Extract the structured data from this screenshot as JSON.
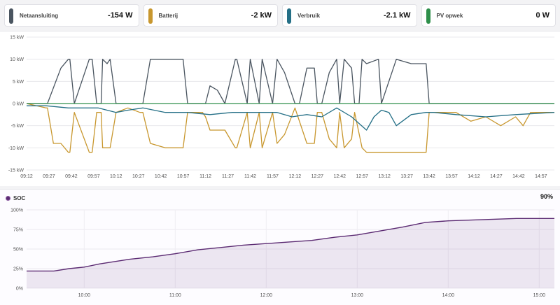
{
  "cards": [
    {
      "label": "Netaansluiting",
      "value": "-154 W",
      "color": "#4a5560"
    },
    {
      "label": "Batterij",
      "value": "-2 kW",
      "color": "#c8972e"
    },
    {
      "label": "Verbruik",
      "value": "-2.1 kW",
      "color": "#246f86"
    },
    {
      "label": "PV opwek",
      "value": "0 W",
      "color": "#2e8f4a"
    }
  ],
  "soc": {
    "label": "SOC",
    "value": "90%",
    "color": "#5b2a72"
  },
  "chart_data": [
    {
      "type": "line",
      "title": "",
      "ylim": [
        -15,
        15
      ],
      "y_unit": "kW",
      "yticks": [
        "15 kW",
        "10 kW",
        "5 kW",
        "0 kW",
        "-5 kW",
        "-10 kW",
        "-15 kW"
      ],
      "xticks": [
        "09:12",
        "09:27",
        "09:42",
        "09:57",
        "10:12",
        "10:27",
        "10:42",
        "10:57",
        "11:12",
        "11:27",
        "11:42",
        "11:57",
        "12:12",
        "12:27",
        "12:42",
        "12:57",
        "13:12",
        "13:27",
        "13:42",
        "13:57",
        "14:12",
        "14:27",
        "14:42",
        "14:57"
      ],
      "grid": true,
      "series": [
        {
          "name": "Netaansluiting",
          "color": "#4a5560",
          "x": [
            "09:12",
            "09:25",
            "09:26",
            "09:35",
            "09:40",
            "09:41",
            "09:44",
            "09:54",
            "09:56",
            "09:59",
            "10:02",
            "10:03",
            "10:06",
            "10:08",
            "10:12",
            "10:20",
            "10:28",
            "10:30",
            "10:35",
            "10:45",
            "10:57",
            "11:00",
            "11:02",
            "11:10",
            "11:12",
            "11:15",
            "11:20",
            "11:25",
            "11:32",
            "11:33",
            "11:40",
            "11:42",
            "11:48",
            "11:50",
            "11:57",
            "12:00",
            "12:05",
            "12:12",
            "12:15",
            "12:20",
            "12:25",
            "12:27",
            "12:30",
            "12:35",
            "12:40",
            "12:42",
            "12:45",
            "12:50",
            "12:52",
            "12:55",
            "12:57",
            "13:00",
            "13:08",
            "13:10",
            "13:20",
            "13:30",
            "13:40",
            "13:42",
            "13:45",
            "14:00",
            "14:20",
            "14:40",
            "15:00",
            "15:06"
          ],
          "y": [
            0,
            0,
            0,
            8,
            10,
            10,
            0,
            10,
            10,
            0,
            0,
            10,
            9,
            10,
            0,
            0,
            0,
            0,
            10,
            10,
            10,
            0,
            0,
            0,
            0,
            4,
            3,
            0,
            10,
            10,
            0,
            10,
            0,
            10,
            0,
            10,
            7,
            0,
            0,
            8,
            8,
            0,
            0,
            7,
            10,
            0,
            10,
            8,
            0,
            0,
            10,
            9,
            10,
            0,
            10,
            9,
            9,
            0,
            0,
            0,
            0,
            0,
            0,
            0
          ]
        },
        {
          "name": "Batterij",
          "color": "#c8972e",
          "x": [
            "09:12",
            "09:25",
            "09:26",
            "09:30",
            "09:35",
            "09:40",
            "09:41",
            "09:44",
            "09:54",
            "09:56",
            "09:59",
            "10:02",
            "10:03",
            "10:08",
            "10:12",
            "10:20",
            "10:28",
            "10:30",
            "10:35",
            "10:45",
            "10:57",
            "11:00",
            "11:10",
            "11:12",
            "11:15",
            "11:25",
            "11:32",
            "11:33",
            "11:40",
            "11:42",
            "11:48",
            "11:50",
            "11:57",
            "12:00",
            "12:05",
            "12:12",
            "12:20",
            "12:25",
            "12:27",
            "12:30",
            "12:35",
            "12:40",
            "12:42",
            "12:45",
            "12:50",
            "12:52",
            "12:57",
            "13:00",
            "13:20",
            "13:40",
            "13:42",
            "13:45",
            "14:00",
            "14:10",
            "14:20",
            "14:30",
            "14:40",
            "14:45",
            "14:50",
            "15:06"
          ],
          "y": [
            0,
            -1,
            -1,
            -9,
            -9,
            -11,
            -11,
            -2,
            -11,
            -11,
            -2,
            -2,
            -10,
            -10,
            -2,
            -1,
            -2,
            -2,
            -9,
            -10,
            -10,
            -2,
            -2,
            -3,
            -6,
            -6,
            -10,
            -10,
            -2,
            -10,
            -2,
            -10,
            -2,
            -9,
            -7,
            -1,
            -9,
            -9,
            -2,
            -2,
            -8,
            -10,
            -2,
            -10,
            -8,
            -2,
            -10,
            -11,
            -11,
            -11,
            -2,
            -2,
            -2,
            -4,
            -3,
            -5,
            -3,
            -5,
            -2,
            -2
          ]
        },
        {
          "name": "Verbruik",
          "color": "#246f86",
          "x": [
            "09:12",
            "09:25",
            "09:40",
            "10:00",
            "10:12",
            "10:20",
            "10:30",
            "10:45",
            "11:00",
            "11:15",
            "11:30",
            "11:45",
            "12:00",
            "12:10",
            "12:20",
            "12:30",
            "12:40",
            "12:50",
            "13:00",
            "13:05",
            "13:10",
            "13:15",
            "13:20",
            "13:30",
            "13:40",
            "13:45",
            "14:00",
            "14:20",
            "14:40",
            "15:06"
          ],
          "y": [
            -0.5,
            -0.5,
            -1,
            -1,
            -2,
            -1.5,
            -1,
            -2,
            -2,
            -2.5,
            -2,
            -2,
            -2,
            -3,
            -2.5,
            -3,
            -1,
            -3,
            -6,
            -3,
            -1.5,
            -2,
            -5,
            -2.5,
            -2,
            -2,
            -2.5,
            -3,
            -2.5,
            -2
          ]
        },
        {
          "name": "PV opwek",
          "color": "#2e8f4a",
          "x": [
            "09:12",
            "15:06"
          ],
          "y": [
            0,
            0
          ]
        }
      ]
    },
    {
      "type": "area",
      "title": "",
      "ylim": [
        0,
        100
      ],
      "yticks": [
        "100%",
        "75%",
        "50%",
        "25%",
        "0%"
      ],
      "xticks": [
        "10:00",
        "11:00",
        "12:00",
        "13:00",
        "14:00",
        "15:00"
      ],
      "grid": true,
      "series": [
        {
          "name": "SOC",
          "color": "#5b2a72",
          "x": [
            "09:22",
            "09:40",
            "09:50",
            "10:00",
            "10:10",
            "10:20",
            "10:30",
            "10:45",
            "11:00",
            "11:15",
            "11:30",
            "11:45",
            "12:00",
            "12:15",
            "12:30",
            "12:45",
            "13:00",
            "13:15",
            "13:30",
            "13:45",
            "14:00",
            "14:15",
            "14:30",
            "14:45",
            "15:00",
            "15:10"
          ],
          "y": [
            22,
            22,
            25,
            27,
            31,
            34,
            37,
            40,
            44,
            49,
            52,
            55,
            57,
            59,
            61,
            65,
            68,
            73,
            78,
            84,
            86,
            87,
            88,
            89,
            89,
            89
          ]
        }
      ]
    }
  ]
}
